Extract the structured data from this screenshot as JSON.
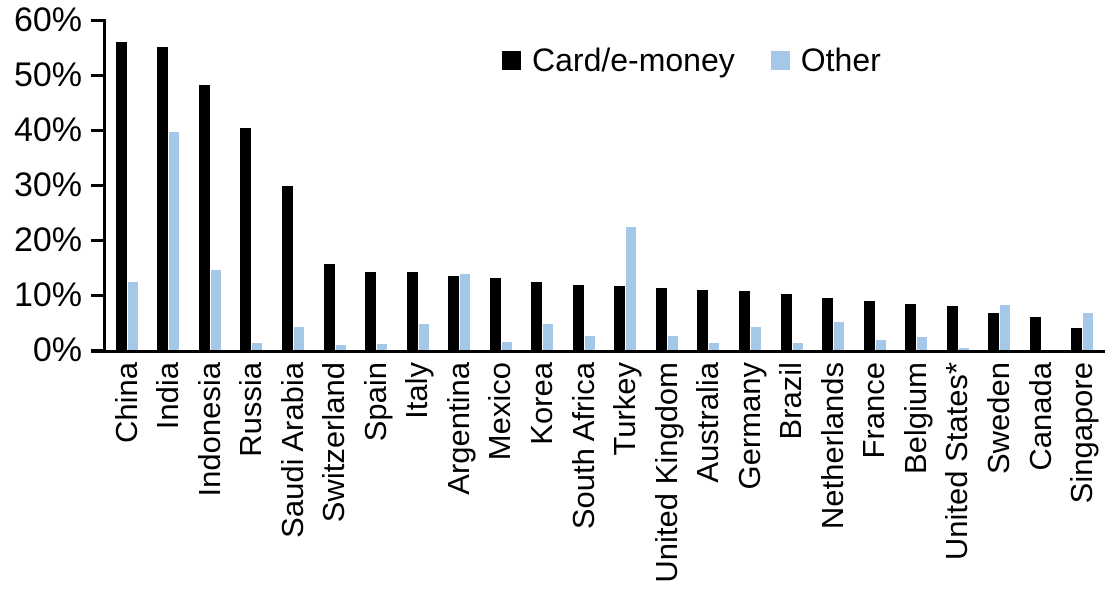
{
  "chart_data": {
    "type": "bar",
    "title": "",
    "xlabel": "",
    "ylabel": "",
    "ylim": [
      0,
      60
    ],
    "ytick_step": 10,
    "yticks": [
      "0%",
      "10%",
      "20%",
      "30%",
      "40%",
      "50%",
      "60%"
    ],
    "grid": false,
    "legend_position": "top-center",
    "categories": [
      "China",
      "India",
      "Indonesia",
      "Russia",
      "Saudi Arabia",
      "Switzerland",
      "Spain",
      "Italy",
      "Argentina",
      "Mexico",
      "Korea",
      "South Africa",
      "Turkey",
      "United Kingdom",
      "Australia",
      "Germany",
      "Brazil",
      "Netherlands",
      "France",
      "Belgium",
      "United States*",
      "Sweden",
      "Canada",
      "Singapore"
    ],
    "series": [
      {
        "name": "Card/e-money",
        "color": "#000000",
        "values": [
          56.0,
          55.0,
          48.1,
          40.4,
          29.8,
          15.7,
          14.2,
          14.1,
          13.5,
          13.0,
          12.3,
          11.8,
          11.6,
          11.2,
          11.0,
          10.8,
          10.1,
          9.4,
          8.9,
          8.4,
          8.0,
          6.7,
          6.0,
          4.0
        ]
      },
      {
        "name": "Other",
        "color": "#a6c8e8",
        "values": [
          12.4,
          39.6,
          14.5,
          1.2,
          4.1,
          0.9,
          1.0,
          4.7,
          13.9,
          1.5,
          4.7,
          2.5,
          22.4,
          2.5,
          1.2,
          4.1,
          1.3,
          5.1,
          1.9,
          2.3,
          0.3,
          8.2,
          0.0,
          6.8
        ]
      }
    ]
  },
  "legend": {
    "card_label": "Card/e-money",
    "other_label": "Other"
  }
}
